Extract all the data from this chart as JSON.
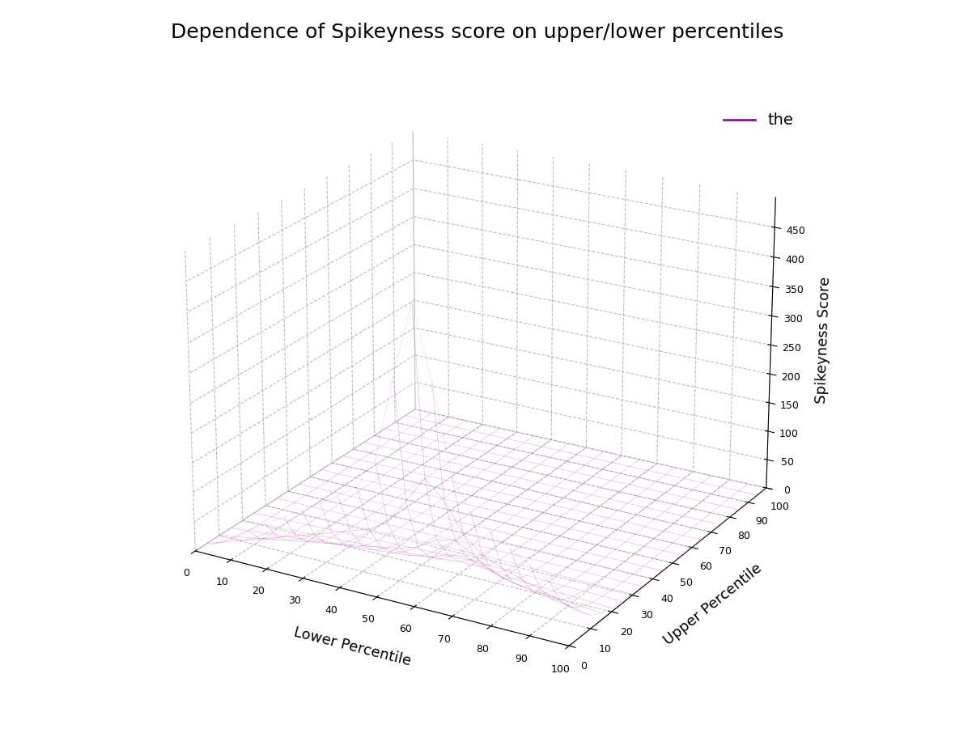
{
  "title": "Dependence of Spikeyness score on upper/lower percentiles",
  "xlabel": "Lower Percentile",
  "ylabel": "Upper Percentile",
  "zlabel": "Spikeyness Score",
  "legend_label": "the",
  "surface_color": "#AA00AA",
  "edge_color": "#AA00AA",
  "surface_alpha": 0.15,
  "background_color": "#ffffff",
  "grid_color": "#bbbbbb",
  "n_points": 21,
  "lower_range": [
    0,
    100
  ],
  "upper_range": [
    0,
    100
  ],
  "zlim": [
    0,
    500
  ],
  "elev": 22,
  "azim": -60
}
